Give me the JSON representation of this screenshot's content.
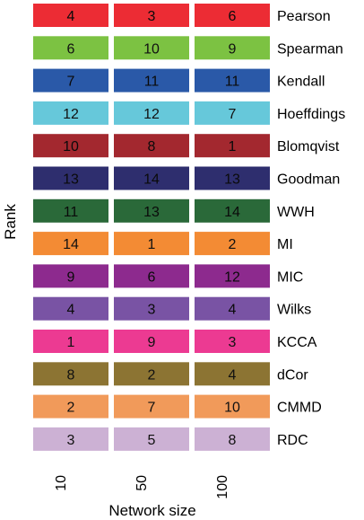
{
  "chart_data": {
    "type": "heatmap",
    "xlabel": "Network size",
    "ylabel": "Rank",
    "columns": [
      "10",
      "50",
      "100"
    ],
    "rows": [
      {
        "name": "Pearson",
        "color": "#ec2c34",
        "values": [
          4,
          3,
          6
        ]
      },
      {
        "name": "Spearman",
        "color": "#7cc242",
        "values": [
          6,
          10,
          9
        ]
      },
      {
        "name": "Kendall",
        "color": "#2a59a8",
        "values": [
          7,
          11,
          11
        ]
      },
      {
        "name": "Hoeffdings",
        "color": "#66c8da",
        "values": [
          12,
          12,
          7
        ]
      },
      {
        "name": "Blomqvist",
        "color": "#a3282f",
        "values": [
          10,
          8,
          1
        ]
      },
      {
        "name": "Goodman",
        "color": "#2e2e6e",
        "values": [
          13,
          14,
          13
        ]
      },
      {
        "name": "WWH",
        "color": "#2a6939",
        "values": [
          11,
          13,
          14
        ]
      },
      {
        "name": "MI",
        "color": "#f38b34",
        "values": [
          14,
          1,
          2
        ]
      },
      {
        "name": "MIC",
        "color": "#8d2a8e",
        "values": [
          9,
          6,
          12
        ]
      },
      {
        "name": "Wilks",
        "color": "#7953a4",
        "values": [
          4,
          3,
          4
        ]
      },
      {
        "name": "KCCA",
        "color": "#ec3a92",
        "values": [
          1,
          9,
          3
        ]
      },
      {
        "name": "dCor",
        "color": "#8c7433",
        "values": [
          8,
          2,
          4
        ]
      },
      {
        "name": "CMMD",
        "color": "#f19a5a",
        "values": [
          2,
          7,
          10
        ]
      },
      {
        "name": "RDC",
        "color": "#ccb1d4",
        "values": [
          3,
          5,
          8
        ]
      }
    ]
  }
}
